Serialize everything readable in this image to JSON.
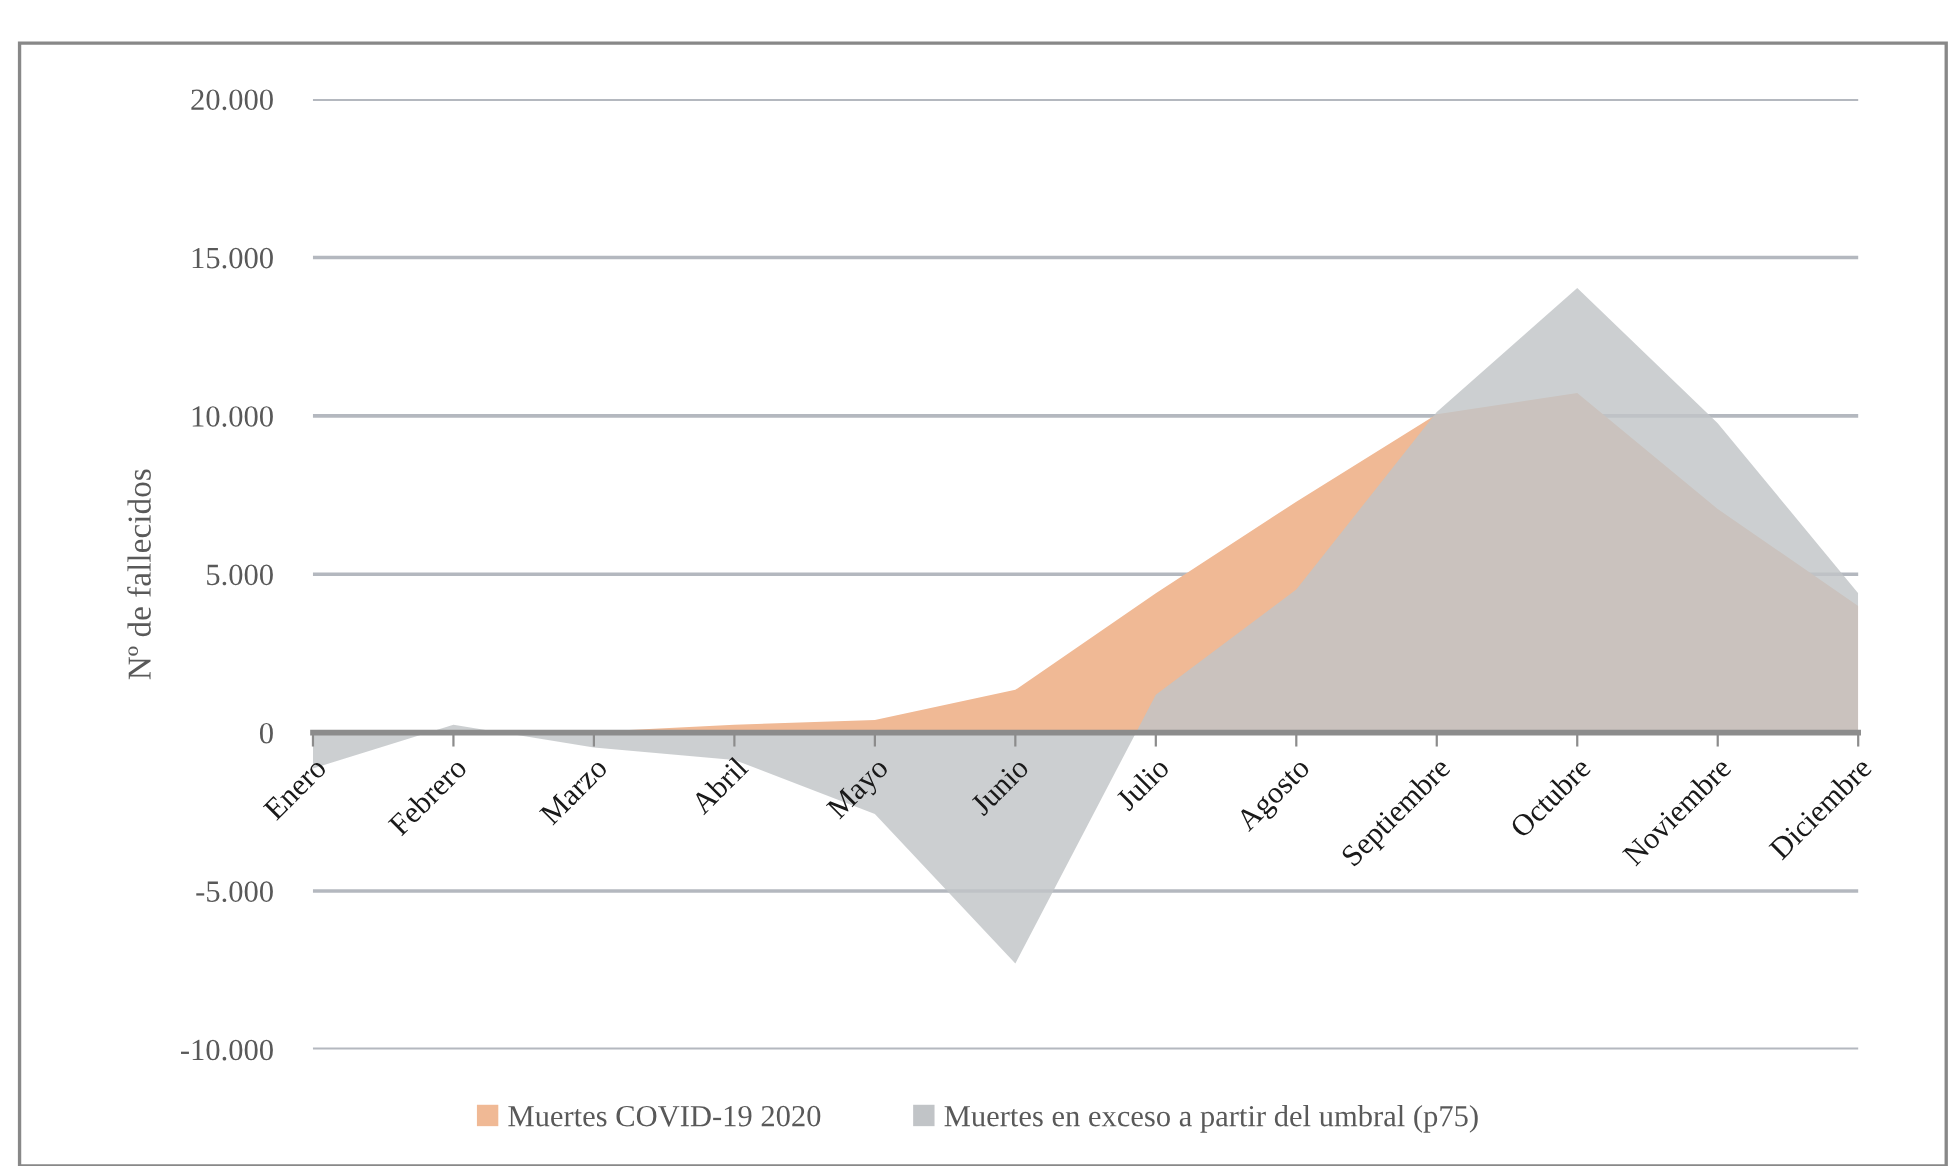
{
  "chart_data": {
    "type": "area",
    "ylabel": "Nº de fallecidos",
    "categories": [
      "Enero",
      "Febrero",
      "Marzo",
      "Abril",
      "Mayo",
      "Junio",
      "Julio",
      "Agosto",
      "Septiembre",
      "Octubre",
      "Noviembre",
      "Diciembre"
    ],
    "series": [
      {
        "name": "Muertes COVID-19 2020",
        "color": "#f0b995",
        "values": [
          0,
          0,
          30,
          250,
          400,
          1350,
          4400,
          7290,
          10050,
          10720,
          7060,
          4000
        ]
      },
      {
        "name": "Muertes en exceso a partir del umbral (p75)",
        "color": "#c1c4c7",
        "values": [
          -1130,
          250,
          -470,
          -860,
          -2570,
          -7290,
          1200,
          4520,
          10120,
          14040,
          9770,
          4400
        ]
      }
    ],
    "ylim": [
      -10000,
      20000
    ],
    "yticks": [
      {
        "value": -10000,
        "label": "-10.000"
      },
      {
        "value": -5000,
        "label": "-5.000"
      },
      0,
      {
        "value": 5000,
        "label": "5.000"
      },
      {
        "value": 10000,
        "label": "10.000"
      },
      {
        "value": 15000,
        "label": "15.000"
      },
      {
        "value": 20000,
        "label": "20.000"
      }
    ],
    "grid": "y",
    "legend": "bottom"
  }
}
